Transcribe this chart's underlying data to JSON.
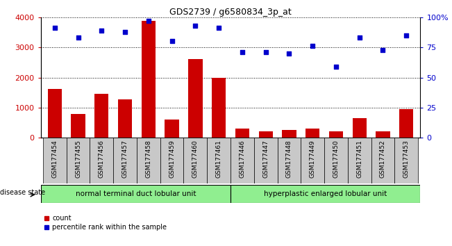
{
  "title": "GDS2739 / g6580834_3p_at",
  "samples": [
    "GSM177454",
    "GSM177455",
    "GSM177456",
    "GSM177457",
    "GSM177458",
    "GSM177459",
    "GSM177460",
    "GSM177461",
    "GSM177446",
    "GSM177447",
    "GSM177448",
    "GSM177449",
    "GSM177450",
    "GSM177451",
    "GSM177452",
    "GSM177453"
  ],
  "counts": [
    1620,
    790,
    1460,
    1280,
    3880,
    610,
    2620,
    1980,
    310,
    205,
    255,
    300,
    205,
    650,
    205,
    940
  ],
  "percentiles": [
    91,
    83,
    89,
    88,
    97,
    80,
    93,
    91,
    71,
    71,
    70,
    76,
    59,
    83,
    73,
    85
  ],
  "group1_label": "normal terminal duct lobular unit",
  "group2_label": "hyperplastic enlarged lobular unit",
  "group1_count": 8,
  "group2_count": 8,
  "bar_color": "#cc0000",
  "dot_color": "#0000cc",
  "ylim_left": [
    0,
    4000
  ],
  "ylim_right": [
    0,
    100
  ],
  "yticks_left": [
    0,
    1000,
    2000,
    3000,
    4000
  ],
  "yticks_right": [
    0,
    25,
    50,
    75,
    100
  ],
  "yticklabels_right": [
    "0",
    "25",
    "50",
    "75",
    "100%"
  ],
  "disease_state_label": "disease state",
  "legend_count_label": "count",
  "legend_pct_label": "percentile rank within the sample",
  "bar_color_hex": "#cc0000",
  "dot_color_hex": "#0000cc",
  "group_bg_color": "#90ee90",
  "tick_bg_color": "#c8c8c8",
  "left_axis_color": "#cc0000",
  "right_axis_color": "#0000cc"
}
